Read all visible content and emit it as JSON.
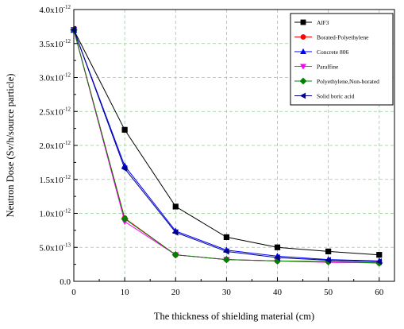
{
  "chart_data": {
    "type": "line",
    "title": "",
    "xlabel": "The thickness of shielding material (cm)",
    "ylabel": "Neutron Dose (Sv/h/source particle)",
    "x": [
      0,
      10,
      20,
      30,
      40,
      50,
      60
    ],
    "xlim": [
      0,
      63
    ],
    "ylim": [
      0,
      4e-12
    ],
    "x_ticks": [
      "0",
      "10",
      "20",
      "30",
      "40",
      "50",
      "60"
    ],
    "y_ticks": [
      {
        "value": 0,
        "mantissa": "0.0",
        "exp": ""
      },
      {
        "value": 5e-13,
        "mantissa": "5.0x10",
        "exp": "-13"
      },
      {
        "value": 1e-12,
        "mantissa": "1.0x10",
        "exp": "-12"
      },
      {
        "value": 1.5e-12,
        "mantissa": "1.5x10",
        "exp": "-12"
      },
      {
        "value": 2e-12,
        "mantissa": "2.0x10",
        "exp": "-12"
      },
      {
        "value": 2.5e-12,
        "mantissa": "2.5x10",
        "exp": "-12"
      },
      {
        "value": 3e-12,
        "mantissa": "3.0x10",
        "exp": "-12"
      },
      {
        "value": 3.5e-12,
        "mantissa": "3.5x10",
        "exp": "-12"
      },
      {
        "value": 4e-12,
        "mantissa": "4.0x10",
        "exp": "-12"
      }
    ],
    "grid": true,
    "legend_position": "top-right",
    "series": [
      {
        "name": "AlF3",
        "color": "#000000",
        "marker": "square",
        "values": [
          3.7e-12,
          2.23e-12,
          1.1e-12,
          6.5e-13,
          5e-13,
          4.4e-13,
          3.9e-13
        ]
      },
      {
        "name": "Borated-Polyethylene",
        "color": "#ff0000",
        "marker": "circle",
        "values": [
          3.7e-12,
          9.3e-13,
          3.9e-13,
          3.2e-13,
          3e-13,
          2.9e-13,
          2.7e-13
        ]
      },
      {
        "name": "Concrete 806",
        "color": "#0000ff",
        "marker": "triangle-up",
        "values": [
          3.7e-12,
          1.7e-12,
          7.4e-13,
          4.6e-13,
          3.7e-13,
          3.2e-13,
          3e-13
        ]
      },
      {
        "name": "Paraffine",
        "color": "#ff00ff",
        "marker": "triangle-down",
        "values": [
          3.7e-12,
          8.8e-13,
          3.9e-13,
          3.2e-13,
          3e-13,
          2.8e-13,
          2.7e-13
        ]
      },
      {
        "name": "Polyethylene,Non-borated",
        "color": "#008000",
        "marker": "diamond",
        "values": [
          3.7e-12,
          9.2e-13,
          3.9e-13,
          3.2e-13,
          3e-13,
          2.9e-13,
          2.7e-13
        ]
      },
      {
        "name": "Solid boric acid",
        "color": "#00008b",
        "marker": "triangle-left",
        "values": [
          3.7e-12,
          1.66e-12,
          7.2e-13,
          4.4e-13,
          3.5e-13,
          3.1e-13,
          2.9e-13
        ]
      }
    ]
  }
}
